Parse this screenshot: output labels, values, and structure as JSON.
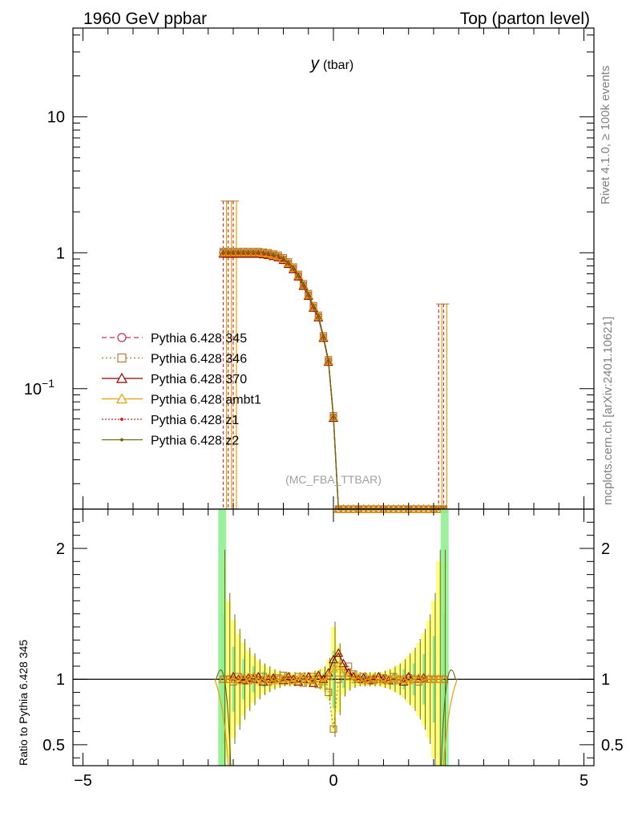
{
  "header": {
    "left": "1960 GeV ppbar",
    "right": "Top (parton level)"
  },
  "side_text": {
    "rivet": "Rivet 4.1.0, ≥ 100k events",
    "mcplots": "mcplots.cern.ch [arXiv:2401.10621]"
  },
  "colors": {
    "band_green": "#90ee90",
    "band_yellow": "#ffff80"
  },
  "chart_data": [
    {
      "type": "line",
      "title": "y (tbar)",
      "title_main": "y",
      "title_sub": "(tbar)",
      "watermark": "(MC_FBA_TTBAR)",
      "xlim": [
        -5.2,
        5.2
      ],
      "ylim": [
        0.013,
        45
      ],
      "yscale": "log",
      "x_ticks": [
        -5,
        0,
        5
      ],
      "y_ticks": [
        {
          "value": 10,
          "label": "10",
          "sup": ""
        },
        {
          "value": 1,
          "label": "1",
          "sup": ""
        },
        {
          "value": 0.1,
          "label": "10",
          "sup": "−1"
        }
      ],
      "x": [
        -2.2,
        -2.1,
        -2.0,
        -1.9,
        -1.8,
        -1.7,
        -1.6,
        -1.5,
        -1.4,
        -1.3,
        -1.2,
        -1.1,
        -1.0,
        -0.9,
        -0.8,
        -0.7,
        -0.6,
        -0.5,
        -0.4,
        -0.3,
        -0.2,
        -0.1,
        0.0,
        0.1,
        0.2,
        0.3,
        0.4,
        0.5,
        0.6,
        0.7,
        0.8,
        0.9,
        1.0,
        1.1,
        1.2,
        1.3,
        1.4,
        1.5,
        1.6,
        1.7,
        1.8,
        1.9,
        2.0,
        2.1,
        2.2
      ],
      "series": [
        {
          "name": "Pythia 6.428 345",
          "color": "#c0304a",
          "dash": "6,4",
          "marker": "circle",
          "scale": 1.0
        },
        {
          "name": "Pythia 6.428 346",
          "color": "#b07a3a",
          "dash": "2,3",
          "marker": "square",
          "scale": 1.02
        },
        {
          "name": "Pythia 6.428 370",
          "color": "#8b0000",
          "dash": "",
          "marker": "triangle",
          "scale": 0.98
        },
        {
          "name": "Pythia 6.428 ambt1",
          "color": "#e8a000",
          "dash": "",
          "marker": "triangle",
          "scale": 1.0
        },
        {
          "name": "Pythia 6.428 z1",
          "color": "#e02020",
          "dash": "2,2",
          "marker": "dot",
          "scale": 0.99
        },
        {
          "name": "Pythia 6.428 z2",
          "color": "#6b6b10",
          "dash": "",
          "marker": "dot",
          "scale": 1.01
        }
      ],
      "values": [
        1.0,
        1.0,
        1.0,
        1.0,
        1.0,
        1.0,
        1.0,
        1.0,
        0.99,
        0.98,
        0.96,
        0.94,
        0.9,
        0.84,
        0.77,
        0.68,
        0.58,
        0.49,
        0.4,
        0.34,
        0.24,
        0.16,
        0.062,
        0.013,
        0.013,
        0.013,
        0.013,
        0.013,
        0.013,
        0.013,
        0.013,
        0.013,
        0.013,
        0.013,
        0.013,
        0.013,
        0.013,
        0.013,
        0.013,
        0.013,
        0.013,
        0.013,
        0.013,
        0.013,
        0.013
      ],
      "error_bars": [
        {
          "x": -2.2,
          "low": 0.013,
          "high": 2.4
        },
        {
          "x": -2.1,
          "low": 0.013,
          "high": 2.4
        },
        {
          "x": -2.0,
          "low": 0.013,
          "high": 2.4
        },
        {
          "x": 2.1,
          "low": 0.013,
          "high": 0.42
        },
        {
          "x": 2.2,
          "low": 0.013,
          "high": 0.42
        }
      ]
    },
    {
      "type": "line",
      "ylabel": "Ratio to Pythia 6.428 345",
      "xlim": [
        -5.2,
        5.2
      ],
      "ylim": [
        0.34,
        2.3
      ],
      "x_ticks": [
        -5,
        0,
        5
      ],
      "x_tick_labels": [
        "−5",
        "0",
        "5"
      ],
      "y_ticks": [
        {
          "value": 2,
          "label": "2"
        },
        {
          "value": 1,
          "label": "1"
        },
        {
          "value": 0.5,
          "label": "0.5"
        }
      ],
      "reference": 1.0,
      "band_green_x": [
        -2.3,
        2.3
      ],
      "band_yellow_half_width": [
        0.9,
        0.6,
        0.45,
        0.35,
        0.28,
        0.22,
        0.18,
        0.14,
        0.11,
        0.09,
        0.07,
        0.06,
        0.05,
        0.05,
        0.05,
        0.05,
        0.05,
        0.05,
        0.06,
        0.07,
        0.09,
        0.15,
        0.4,
        0.25,
        0.12,
        0.08,
        0.06,
        0.05,
        0.05,
        0.05,
        0.05,
        0.05,
        0.06,
        0.07,
        0.09,
        0.11,
        0.14,
        0.18,
        0.22,
        0.28,
        0.35,
        0.45,
        0.6,
        0.9,
        0.9
      ],
      "ratio_370": [
        1.0,
        1.0,
        1.02,
        1.0,
        0.99,
        1.01,
        1.0,
        1.02,
        0.98,
        1.0,
        1.01,
        1.0,
        0.99,
        1.02,
        1.0,
        0.98,
        1.0,
        1.02,
        0.97,
        1.03,
        1.0,
        1.05,
        1.15,
        1.2,
        1.12,
        1.05,
        1.02,
        1.0,
        1.01,
        0.99,
        1.0,
        1.02,
        1.0,
        0.99,
        1.01,
        1.0,
        0.98,
        1.02,
        1.0,
        1.0,
        1.01,
        1.0,
        1.0,
        1.0,
        1.0
      ],
      "ratio_346": [
        1.0,
        1.0,
        0.98,
        1.02,
        1.0,
        0.99,
        1.01,
        1.0,
        1.02,
        0.98,
        1.0,
        1.01,
        1.03,
        0.99,
        1.0,
        1.02,
        0.97,
        1.0,
        1.02,
        0.96,
        1.0,
        0.9,
        0.62,
        1.0,
        1.05,
        1.1,
        1.04,
        1.0,
        1.02,
        1.0,
        0.99,
        1.0,
        1.01,
        1.0,
        1.02,
        0.99,
        1.0,
        1.01,
        1.0,
        0.98,
        1.0,
        1.0,
        1.0,
        1.0,
        1.0
      ],
      "ratio_ambt1": [
        1.0,
        1.0,
        1.0,
        0.99,
        1.01,
        1.0,
        1.02,
        0.99,
        1.0,
        1.01,
        0.99,
        1.0,
        1.0,
        1.01,
        0.99,
        1.0,
        1.02,
        0.99,
        1.0,
        1.01,
        0.98,
        1.02,
        1.08,
        1.1,
        1.05,
        1.02,
        1.0,
        1.01,
        0.99,
        1.0,
        1.01,
        1.0,
        0.99,
        1.0,
        1.01,
        1.0,
        1.0,
        0.99,
        1.0,
        1.01,
        1.0,
        1.0,
        1.0,
        1.0,
        1.0
      ]
    }
  ],
  "legend": [
    "Pythia 6.428 345",
    "Pythia 6.428 346",
    "Pythia 6.428 370",
    "Pythia 6.428 ambt1",
    "Pythia 6.428 z1",
    "Pythia 6.428 z2"
  ]
}
